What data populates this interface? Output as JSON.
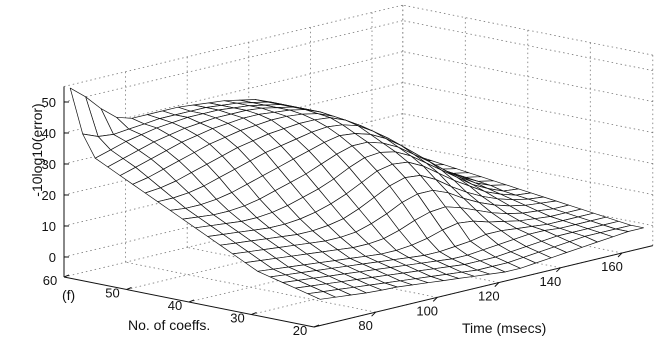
{
  "chart_data": {
    "type": "surface",
    "panel_label": "(f)",
    "zlabel": "-10log10(error)",
    "xlabel": "Time (msecs)",
    "ylabel": "No. of coeffs.",
    "xlim": [
      60,
      170
    ],
    "ylim": [
      20,
      60
    ],
    "zlim": [
      -5,
      55
    ],
    "xticks": [
      "80",
      "100",
      "120",
      "140",
      "160"
    ],
    "yticks": [
      "20",
      "30",
      "40",
      "50",
      "60"
    ],
    "zticks": [
      "0",
      "10",
      "20",
      "30",
      "40",
      "50"
    ],
    "grid": true,
    "time_ms": [
      62,
      67,
      72,
      77,
      82,
      87,
      92,
      97,
      102,
      107,
      112,
      117,
      122,
      127,
      132,
      137,
      142,
      147,
      152,
      157,
      162,
      167
    ],
    "coeffs": [
      20,
      22,
      24,
      26,
      28,
      30,
      32,
      34,
      36,
      38,
      40,
      42,
      44,
      46,
      48,
      50,
      52,
      54,
      56,
      58,
      60
    ],
    "error_db": [
      [
        2.0,
        1.5,
        1.0,
        0.5,
        0.2,
        0.0,
        -0.5,
        -1.0,
        -1.5,
        -2.0,
        -2.5,
        -3.0,
        -3.5,
        -3.5,
        -3.0,
        -2.5,
        -2.0,
        -1.5,
        -1.0,
        -0.5,
        0.0,
        0.0
      ],
      [
        3.0,
        2.5,
        2.0,
        1.5,
        1.0,
        0.5,
        0.0,
        -0.5,
        -1.0,
        -1.5,
        -2.0,
        -2.5,
        -2.5,
        -2.5,
        -2.0,
        -1.5,
        -1.0,
        -0.5,
        0.0,
        0.0,
        0.0,
        0.0
      ],
      [
        4.0,
        3.5,
        3.0,
        2.5,
        2.0,
        1.5,
        1.0,
        0.5,
        0.0,
        -0.5,
        -1.0,
        -1.5,
        -1.5,
        -1.5,
        -1.0,
        -0.5,
        0.0,
        0.5,
        0.5,
        0.5,
        0.5,
        0.5
      ],
      [
        5.0,
        4.5,
        4.0,
        3.5,
        3.0,
        2.5,
        2.0,
        1.5,
        1.0,
        0.5,
        0.0,
        -0.5,
        -0.5,
        0.0,
        0.5,
        1.0,
        1.5,
        1.5,
        1.0,
        1.0,
        1.0,
        1.0
      ],
      [
        6.0,
        5.5,
        5.0,
        4.5,
        4.0,
        3.5,
        3.0,
        2.5,
        2.0,
        1.5,
        1.0,
        1.0,
        1.5,
        2.0,
        3.0,
        3.0,
        2.5,
        2.0,
        1.5,
        1.5,
        1.5,
        1.5
      ],
      [
        7.0,
        6.5,
        6.0,
        5.5,
        5.0,
        4.5,
        4.0,
        3.5,
        3.0,
        3.0,
        3.5,
        4.5,
        6.0,
        7.0,
        6.5,
        5.0,
        4.0,
        3.0,
        2.5,
        2.0,
        2.0,
        2.0
      ],
      [
        9.0,
        8.5,
        8.0,
        7.5,
        7.0,
        6.5,
        6.0,
        5.5,
        5.5,
        6.0,
        7.5,
        9.5,
        11.0,
        11.5,
        10.0,
        8.0,
        6.0,
        4.5,
        3.5,
        3.0,
        2.5,
        2.5
      ],
      [
        11.0,
        10.5,
        10.0,
        9.5,
        9.0,
        8.5,
        8.0,
        8.0,
        8.5,
        10.0,
        12.0,
        14.5,
        16.0,
        16.0,
        14.0,
        11.0,
        8.5,
        6.5,
        5.0,
        4.0,
        3.5,
        3.0
      ],
      [
        13.0,
        12.5,
        12.0,
        11.5,
        11.0,
        10.5,
        10.5,
        11.0,
        12.0,
        14.0,
        16.5,
        19.0,
        20.5,
        20.0,
        17.5,
        14.0,
        11.0,
        8.5,
        6.5,
        5.0,
        4.0,
        3.5
      ],
      [
        15.0,
        14.5,
        14.0,
        13.5,
        13.0,
        13.0,
        13.5,
        14.5,
        16.0,
        18.0,
        20.5,
        23.0,
        24.0,
        23.5,
        21.0,
        17.5,
        14.0,
        11.0,
        8.0,
        6.0,
        4.5,
        4.0
      ],
      [
        17.0,
        16.5,
        16.0,
        15.5,
        15.5,
        16.0,
        17.0,
        18.5,
        20.0,
        22.0,
        24.5,
        26.5,
        27.0,
        26.0,
        23.5,
        20.0,
        16.5,
        13.0,
        9.5,
        7.0,
        5.0,
        4.5
      ],
      [
        19.0,
        18.5,
        18.0,
        18.0,
        18.5,
        19.5,
        21.0,
        22.5,
        24.0,
        26.0,
        28.0,
        29.5,
        29.5,
        28.0,
        25.5,
        22.0,
        18.5,
        14.5,
        11.0,
        8.0,
        6.0,
        5.0
      ],
      [
        21.0,
        20.5,
        20.5,
        21.0,
        22.0,
        23.5,
        25.0,
        26.5,
        28.0,
        29.5,
        31.0,
        32.0,
        31.5,
        30.0,
        27.5,
        24.0,
        20.0,
        16.0,
        12.0,
        9.0,
        6.5,
        5.5
      ],
      [
        23.0,
        23.0,
        23.5,
        24.5,
        26.0,
        27.5,
        29.0,
        30.5,
        31.5,
        32.5,
        33.5,
        34.0,
        33.5,
        32.0,
        29.0,
        25.5,
        21.5,
        17.0,
        13.0,
        9.5,
        7.0,
        6.0
      ],
      [
        25.0,
        25.5,
        26.5,
        28.0,
        29.5,
        31.0,
        32.5,
        33.5,
        34.5,
        35.0,
        35.5,
        35.5,
        35.0,
        33.0,
        30.0,
        26.5,
        22.0,
        17.5,
        13.5,
        10.0,
        7.5,
        6.5
      ],
      [
        27.0,
        28.0,
        29.5,
        31.0,
        32.5,
        34.0,
        35.0,
        36.0,
        36.5,
        37.0,
        37.0,
        36.5,
        35.5,
        33.5,
        30.5,
        27.0,
        22.5,
        18.0,
        14.0,
        10.5,
        8.0,
        7.0
      ],
      [
        29.0,
        30.5,
        32.0,
        33.5,
        35.0,
        36.0,
        37.0,
        37.5,
        38.0,
        38.0,
        37.5,
        37.0,
        36.0,
        34.0,
        31.0,
        27.0,
        23.0,
        18.5,
        14.5,
        11.0,
        8.5,
        7.5
      ],
      [
        31.0,
        32.5,
        34.0,
        35.5,
        36.5,
        37.5,
        38.0,
        38.5,
        38.5,
        38.5,
        38.0,
        37.0,
        36.0,
        34.0,
        31.0,
        27.5,
        23.0,
        19.0,
        15.0,
        11.5,
        9.0,
        8.0
      ],
      [
        33.0,
        34.5,
        36.0,
        37.0,
        38.0,
        38.5,
        39.0,
        39.0,
        39.0,
        38.5,
        38.0,
        37.0,
        36.0,
        34.0,
        31.0,
        27.5,
        23.5,
        19.0,
        15.0,
        12.0,
        9.5,
        8.5
      ],
      [
        40.0,
        38.0,
        37.5,
        38.0,
        38.5,
        39.0,
        39.0,
        39.0,
        39.0,
        38.5,
        38.0,
        37.0,
        36.0,
        34.0,
        31.0,
        27.5,
        23.5,
        19.5,
        15.5,
        12.0,
        10.0,
        9.0
      ],
      [
        54.0,
        50.0,
        45.0,
        41.0,
        39.5,
        39.5,
        39.5,
        39.5,
        39.0,
        38.5,
        38.0,
        37.0,
        36.0,
        34.0,
        31.0,
        27.5,
        23.5,
        19.5,
        15.5,
        12.5,
        10.0,
        9.0
      ]
    ]
  }
}
